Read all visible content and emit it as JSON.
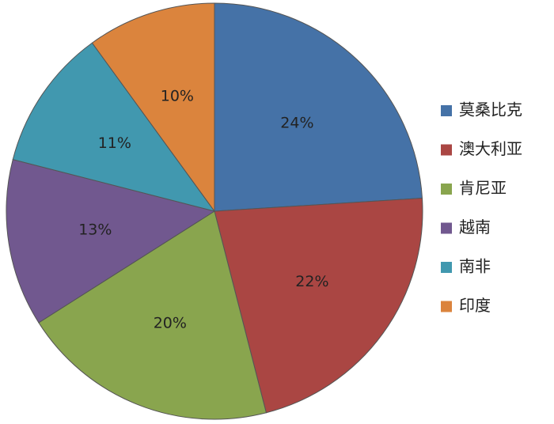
{
  "chart_data": {
    "type": "pie",
    "categories": [
      "莫桑比克",
      "澳大利亚",
      "肯尼亚",
      "越南",
      "南非",
      "印度"
    ],
    "values": [
      24,
      22,
      20,
      13,
      11,
      10
    ],
    "value_labels": [
      "24%",
      "22%",
      "20%",
      "13%",
      "11%",
      "10%"
    ],
    "colors": [
      "#4572a7",
      "#aa4643",
      "#89a54e",
      "#71588f",
      "#4198af",
      "#db843d"
    ],
    "legend": "right"
  }
}
